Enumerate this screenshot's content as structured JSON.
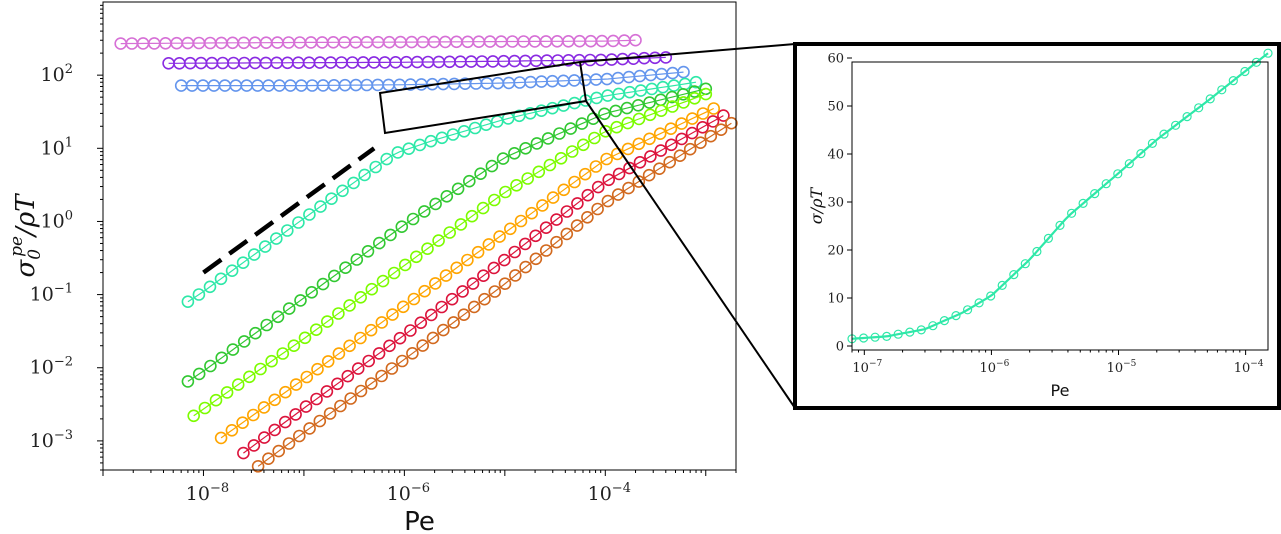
{
  "chart_data": [
    {
      "type": "scatter",
      "panel": "main",
      "xscale": "log",
      "yscale": "log",
      "xlabel": "Pe",
      "ylabel": "σ0pe/ρT",
      "xlim": [
        1e-09,
        0.002
      ],
      "ylim": [
        0.0004,
        1000
      ],
      "xticks": [
        {
          "value": 1e-08,
          "base": "10",
          "exp": "−8"
        },
        {
          "value": 1e-06,
          "base": "10",
          "exp": "−6"
        },
        {
          "value": 0.0001,
          "base": "10",
          "exp": "−4"
        }
      ],
      "yticks": [
        {
          "value": 0.001,
          "base": "10",
          "exp": "−3"
        },
        {
          "value": 0.01,
          "base": "10",
          "exp": "−2"
        },
        {
          "value": 0.1,
          "base": "10",
          "exp": "−1"
        },
        {
          "value": 1,
          "base": "10",
          "exp": "0"
        },
        {
          "value": 10,
          "base": "10",
          "exp": "1"
        },
        {
          "value": 100,
          "base": "10",
          "exp": "2"
        }
      ],
      "grid": false,
      "series": [
        {
          "color": "#d670d6",
          "points": [
            [
              1.5e-09,
              270
            ],
            [
              1e-08,
              275
            ],
            [
              1e-07,
              280
            ],
            [
              1e-06,
              283
            ],
            [
              1e-05,
              288
            ],
            [
              0.0001,
              292
            ],
            [
              0.0002,
              300
            ]
          ]
        },
        {
          "color": "#8a2be2",
          "points": [
            [
              4.5e-09,
              145
            ],
            [
              1e-08,
              146
            ],
            [
              1e-07,
              148
            ],
            [
              1e-06,
              150
            ],
            [
              1e-05,
              155
            ],
            [
              0.0001,
              162
            ],
            [
              0.0004,
              175
            ]
          ]
        },
        {
          "color": "#6495ed",
          "points": [
            [
              6e-09,
              72
            ],
            [
              1e-08,
              72
            ],
            [
              1e-07,
              72
            ],
            [
              1e-06,
              74
            ],
            [
              1e-05,
              78
            ],
            [
              0.0001,
              88
            ],
            [
              0.0006,
              110
            ]
          ]
        },
        {
          "color": "#2ee8a8",
          "points": [
            [
              7e-09,
              0.08
            ],
            [
              1e-08,
              0.11
            ],
            [
              1e-07,
              1.1
            ],
            [
              8e-07,
              8.5
            ],
            [
              2e-06,
              13
            ],
            [
              1e-05,
              25
            ],
            [
              0.0001,
              52
            ],
            [
              0.0008,
              80
            ]
          ]
        },
        {
          "color": "#32c832",
          "points": [
            [
              7e-09,
              0.0065
            ],
            [
              1e-08,
              0.009
            ],
            [
              1e-07,
              0.09
            ],
            [
              1e-06,
              0.9
            ],
            [
              1e-05,
              7.5
            ],
            [
              0.0001,
              30
            ],
            [
              0.001,
              65
            ]
          ]
        },
        {
          "color": "#7cfc00",
          "points": [
            [
              8e-09,
              0.0022
            ],
            [
              1e-07,
              0.025
            ],
            [
              1e-06,
              0.25
            ],
            [
              1e-05,
              2.5
            ],
            [
              0.0001,
              17
            ],
            [
              0.001,
              55
            ]
          ]
        },
        {
          "color": "#ffa500",
          "points": [
            [
              1.5e-08,
              0.0011
            ],
            [
              1e-07,
              0.007
            ],
            [
              1e-06,
              0.07
            ],
            [
              1e-05,
              0.7
            ],
            [
              0.0001,
              7
            ],
            [
              0.0012,
              35
            ]
          ]
        },
        {
          "color": "#dc143c",
          "points": [
            [
              2.5e-08,
              0.00068
            ],
            [
              1e-07,
              0.0028
            ],
            [
              1e-06,
              0.028
            ],
            [
              1e-05,
              0.3
            ],
            [
              0.0001,
              3.5
            ],
            [
              0.0015,
              28
            ]
          ]
        },
        {
          "color": "#d2691e",
          "points": [
            [
              3.5e-08,
              0.00045
            ],
            [
              1e-07,
              0.0013
            ],
            [
              1e-06,
              0.013
            ],
            [
              1e-05,
              0.14
            ],
            [
              0.0001,
              1.8
            ],
            [
              0.0018,
              22
            ]
          ]
        }
      ],
      "reference_line": {
        "style": "dashed",
        "color": "#000000",
        "points": [
          [
            1e-08,
            0.2
          ],
          [
            5e-07,
            10
          ]
        ]
      }
    },
    {
      "type": "line",
      "panel": "inset",
      "xscale": "log",
      "yscale": "linear",
      "xlabel": "Pe",
      "ylabel": "σ/ρT",
      "xlim": [
        8e-08,
        0.00015
      ],
      "ylim": [
        0,
        60
      ],
      "xticks": [
        {
          "value": 1e-07,
          "base": "10",
          "exp": "−7"
        },
        {
          "value": 1e-06,
          "base": "10",
          "exp": "−6"
        },
        {
          "value": 1e-05,
          "base": "10",
          "exp": "−5"
        },
        {
          "value": 0.0001,
          "base": "10",
          "exp": "−4"
        }
      ],
      "yticks": [
        0,
        10,
        20,
        30,
        40,
        50,
        60
      ],
      "series": [
        {
          "color": "#2ee8a8",
          "points": [
            [
              8e-08,
              1.5
            ],
            [
              1.5e-07,
              2.0
            ],
            [
              3e-07,
              3.5
            ],
            [
              6e-07,
              7.0
            ],
            [
              1e-06,
              10.5
            ],
            [
              2e-06,
              18
            ],
            [
              4e-06,
              27
            ],
            [
              1e-05,
              36
            ],
            [
              2e-05,
              43
            ],
            [
              5e-05,
              51
            ],
            [
              0.00015,
              61
            ]
          ]
        }
      ]
    }
  ]
}
